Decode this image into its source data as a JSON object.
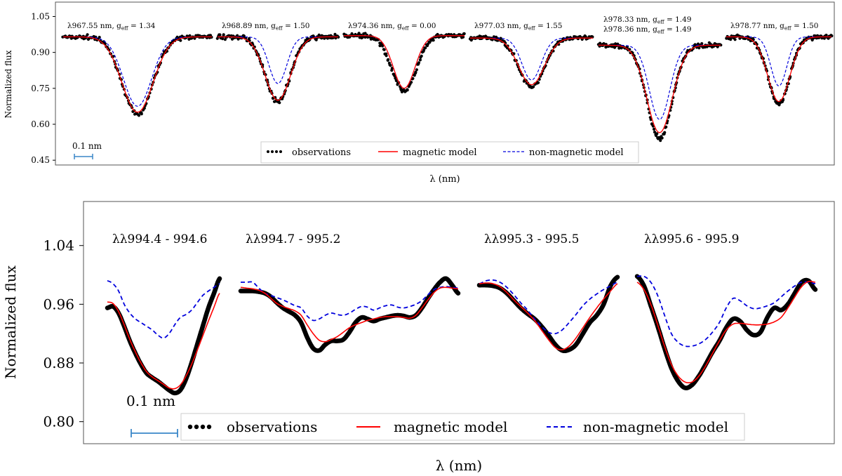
{
  "figure": {
    "colors": {
      "observations": "#000000",
      "magnetic": "#ff0000",
      "non_magnetic": "#0000dd",
      "scale_bar": "#3a87c8"
    }
  },
  "chart_data": [
    {
      "type": "line",
      "id": "top",
      "title": "",
      "xlabel": "λ (nm)",
      "ylabel": "Normalized flux",
      "ylim": [
        0.43,
        1.11
      ],
      "yticks": [
        "1.05",
        "0.90",
        "0.75",
        "0.60",
        "0.45"
      ],
      "ytick_values": [
        1.05,
        0.9,
        0.75,
        0.6,
        0.45
      ],
      "grid": false,
      "legend_position": "bottom-center",
      "legend": [
        "observations",
        "magnetic model",
        "non-magnetic model"
      ],
      "scale_bar_label": "0.1 nm",
      "segments": [
        {
          "label": "λ967.55 nm, geff = 1.34",
          "label_parts": [
            "λ967.55 nm, g",
            "eff",
            " = 1.34"
          ],
          "continuum": 0.965,
          "depth_obs": 0.325,
          "depth_mag": 0.315,
          "depth_nonmag": 0.29,
          "width_mag": 1.0,
          "width_nonmag": 0.9,
          "obs_points": 150
        },
        {
          "label": "λ968.89 nm, geff = 1.50",
          "label_parts": [
            "λ968.89 nm, g",
            "eff",
            " = 1.50"
          ],
          "continuum": 0.965,
          "depth_obs": 0.27,
          "depth_mag": 0.265,
          "depth_nonmag": 0.195,
          "width_mag": 1.0,
          "width_nonmag": 0.7,
          "obs_points": 150
        },
        {
          "label": "λ974.36 nm, geff = 0.00",
          "label_parts": [
            "λ974.36 nm, g",
            "eff",
            " = 0.00"
          ],
          "continuum": 0.97,
          "depth_obs": 0.23,
          "depth_mag": 0.22,
          "depth_nonmag": 0.22,
          "width_mag": 0.85,
          "width_nonmag": 0.85,
          "obs_points": 150
        },
        {
          "label": "λ977.03 nm, geff = 1.55",
          "label_parts": [
            "λ977.03 nm, g",
            "eff",
            " = 1.55"
          ],
          "continuum": 0.96,
          "depth_obs": 0.205,
          "depth_mag": 0.195,
          "depth_nonmag": 0.175,
          "width_mag": 1.0,
          "width_nonmag": 0.75,
          "obs_points": 150
        },
        {
          "label": "λ978.33 nm, geff = 1.49 / λ978.36 nm, geff = 1.49",
          "label_parts": [
            "λ978.33 nm, g",
            "eff",
            " = 1.49"
          ],
          "label_parts_2": [
            "λ978.36 nm, g",
            "eff",
            " = 1.49"
          ],
          "continuum": 0.93,
          "depth_obs": 0.39,
          "depth_mag": 0.365,
          "depth_nonmag": 0.31,
          "width_mag": 1.0,
          "width_nonmag": 0.8,
          "obs_points": 160
        },
        {
          "label": "λ978.77 nm, geff = 1.50",
          "label_parts": [
            "λ978.77 nm, g",
            "eff",
            " = 1.50"
          ],
          "continuum": 0.965,
          "depth_obs": 0.28,
          "depth_mag": 0.27,
          "depth_nonmag": 0.205,
          "width_mag": 1.0,
          "width_nonmag": 0.72,
          "obs_points": 150
        }
      ]
    },
    {
      "type": "line",
      "id": "bottom",
      "title": "",
      "xlabel": "λ (nm)",
      "ylabel": "Normalized flux",
      "ylim": [
        0.77,
        1.1
      ],
      "yticks": [
        "1.04",
        "0.96",
        "0.88",
        "0.80"
      ],
      "ytick_values": [
        1.04,
        0.96,
        0.88,
        0.8
      ],
      "grid": false,
      "legend_position": "bottom-center",
      "legend": [
        "observations",
        "magnetic model",
        "non-magnetic model"
      ],
      "scale_bar_label": "0.1 nm",
      "segments": [
        {
          "label": "λλ994.4 - 994.6",
          "obs": [
            0.955,
            0.957,
            0.948,
            0.93,
            0.91,
            0.893,
            0.878,
            0.866,
            0.86,
            0.855,
            0.849,
            0.843,
            0.839,
            0.843,
            0.858,
            0.88,
            0.905,
            0.93,
            0.955,
            0.975,
            0.995
          ],
          "mag": [
            0.963,
            0.961,
            0.95,
            0.932,
            0.912,
            0.895,
            0.88,
            0.868,
            0.861,
            0.856,
            0.851,
            0.846,
            0.845,
            0.85,
            0.862,
            0.878,
            0.897,
            0.917,
            0.937,
            0.956,
            0.975
          ],
          "nonmag": [
            0.992,
            0.988,
            0.978,
            0.96,
            0.948,
            0.94,
            0.935,
            0.93,
            0.925,
            0.918,
            0.914,
            0.92,
            0.932,
            0.942,
            0.946,
            0.952,
            0.962,
            0.972,
            0.978,
            0.983,
            0.988
          ]
        },
        {
          "label": "λλ994.7 - 995.2",
          "obs": [
            0.978,
            0.978,
            0.978,
            0.977,
            0.975,
            0.97,
            0.962,
            0.955,
            0.95,
            0.945,
            0.935,
            0.915,
            0.9,
            0.897,
            0.905,
            0.91,
            0.91,
            0.912,
            0.922,
            0.935,
            0.942,
            0.94,
            0.937,
            0.94,
            0.942,
            0.944,
            0.945,
            0.944,
            0.942,
            0.945,
            0.955,
            0.968,
            0.98,
            0.99,
            0.995,
            0.986,
            0.975
          ],
          "mag": [
            0.983,
            0.982,
            0.981,
            0.979,
            0.975,
            0.968,
            0.961,
            0.957,
            0.954,
            0.951,
            0.945,
            0.932,
            0.92,
            0.911,
            0.909,
            0.912,
            0.916,
            0.922,
            0.928,
            0.932,
            0.935,
            0.938,
            0.94,
            0.942,
            0.943,
            0.943,
            0.943,
            0.942,
            0.941,
            0.945,
            0.955,
            0.966,
            0.976,
            0.982,
            0.983,
            0.982,
            0.981
          ],
          "nonmag": [
            0.99,
            0.99,
            0.99,
            0.982,
            0.975,
            0.972,
            0.969,
            0.966,
            0.962,
            0.958,
            0.955,
            0.944,
            0.938,
            0.94,
            0.945,
            0.948,
            0.946,
            0.945,
            0.948,
            0.953,
            0.957,
            0.956,
            0.952,
            0.955,
            0.958,
            0.959,
            0.956,
            0.955,
            0.957,
            0.96,
            0.965,
            0.973,
            0.98,
            0.983,
            0.984,
            0.983,
            0.982
          ]
        },
        {
          "label": "λλ995.3 - 995.5",
          "obs": [
            0.986,
            0.986,
            0.985,
            0.982,
            0.975,
            0.965,
            0.955,
            0.947,
            0.94,
            0.93,
            0.918,
            0.905,
            0.897,
            0.898,
            0.905,
            0.92,
            0.935,
            0.945,
            0.96,
            0.985,
            0.997
          ],
          "mag": [
            0.988,
            0.989,
            0.988,
            0.984,
            0.976,
            0.966,
            0.957,
            0.948,
            0.938,
            0.925,
            0.912,
            0.901,
            0.898,
            0.903,
            0.914,
            0.928,
            0.942,
            0.955,
            0.967,
            0.978,
            0.988
          ],
          "nonmag": [
            0.988,
            0.992,
            0.993,
            0.99,
            0.983,
            0.973,
            0.962,
            0.952,
            0.94,
            0.93,
            0.922,
            0.92,
            0.925,
            0.935,
            0.946,
            0.958,
            0.967,
            0.974,
            0.98,
            0.985,
            0.99
          ]
        },
        {
          "label": "λλ995.6 - 995.9",
          "obs": [
            0.998,
            0.985,
            0.958,
            0.93,
            0.9,
            0.873,
            0.855,
            0.846,
            0.85,
            0.862,
            0.878,
            0.895,
            0.91,
            0.928,
            0.94,
            0.937,
            0.925,
            0.918,
            0.922,
            0.942,
            0.955,
            0.952,
            0.96,
            0.975,
            0.99,
            0.992,
            0.98
          ],
          "mag": [
            0.99,
            0.98,
            0.96,
            0.932,
            0.903,
            0.878,
            0.862,
            0.854,
            0.854,
            0.862,
            0.876,
            0.893,
            0.91,
            0.925,
            0.933,
            0.934,
            0.933,
            0.932,
            0.932,
            0.933,
            0.936,
            0.942,
            0.955,
            0.97,
            0.984,
            0.991,
            0.99
          ],
          "nonmag": [
            0.998,
            0.998,
            0.99,
            0.972,
            0.945,
            0.92,
            0.908,
            0.903,
            0.903,
            0.906,
            0.912,
            0.922,
            0.935,
            0.955,
            0.968,
            0.965,
            0.958,
            0.954,
            0.955,
            0.958,
            0.962,
            0.97,
            0.978,
            0.985,
            0.99,
            0.99,
            0.988
          ]
        }
      ]
    }
  ]
}
